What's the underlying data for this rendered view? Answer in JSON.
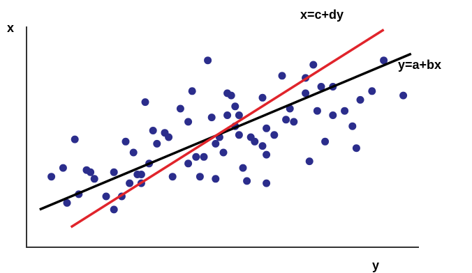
{
  "chart_data": {
    "type": "scatter",
    "title": "",
    "xlabel": "y",
    "ylabel": "x",
    "xlim": [
      0,
      100
    ],
    "ylim": [
      0,
      100
    ],
    "grid": false,
    "legend": "none",
    "points": [
      [
        6,
        29
      ],
      [
        9,
        33
      ],
      [
        10,
        17
      ],
      [
        12,
        46
      ],
      [
        13,
        21
      ],
      [
        15,
        32
      ],
      [
        16,
        31
      ],
      [
        17,
        28
      ],
      [
        20,
        20
      ],
      [
        22,
        31
      ],
      [
        22,
        14
      ],
      [
        24,
        20
      ],
      [
        25,
        45
      ],
      [
        26,
        26
      ],
      [
        27,
        40
      ],
      [
        28,
        30
      ],
      [
        29,
        30
      ],
      [
        29,
        26
      ],
      [
        30,
        63
      ],
      [
        31,
        35
      ],
      [
        32,
        50
      ],
      [
        33,
        44
      ],
      [
        35,
        49
      ],
      [
        36,
        47
      ],
      [
        37,
        29
      ],
      [
        39,
        60
      ],
      [
        41,
        54
      ],
      [
        41,
        35
      ],
      [
        42,
        68
      ],
      [
        43,
        38
      ],
      [
        44,
        29
      ],
      [
        45,
        38
      ],
      [
        46,
        82
      ],
      [
        47,
        56
      ],
      [
        48,
        44
      ],
      [
        48,
        28
      ],
      [
        49,
        47
      ],
      [
        50,
        40
      ],
      [
        51,
        67
      ],
      [
        51,
        57
      ],
      [
        52,
        66
      ],
      [
        53,
        61
      ],
      [
        54,
        48
      ],
      [
        54,
        57
      ],
      [
        53,
        52
      ],
      [
        55,
        33
      ],
      [
        56,
        27
      ],
      [
        57,
        47
      ],
      [
        58,
        45
      ],
      [
        60,
        43
      ],
      [
        60,
        65
      ],
      [
        61,
        51
      ],
      [
        61,
        39
      ],
      [
        61,
        26
      ],
      [
        63,
        48
      ],
      [
        65,
        75
      ],
      [
        66,
        55
      ],
      [
        67,
        60
      ],
      [
        68,
        54
      ],
      [
        71,
        74
      ],
      [
        71,
        67
      ],
      [
        72,
        36
      ],
      [
        73,
        80
      ],
      [
        74,
        59
      ],
      [
        75,
        70
      ],
      [
        76,
        45
      ],
      [
        78,
        70
      ],
      [
        78,
        57
      ],
      [
        81,
        59
      ],
      [
        83,
        52
      ],
      [
        84,
        42
      ],
      [
        85,
        64
      ],
      [
        88,
        68
      ],
      [
        91,
        82
      ],
      [
        96,
        66
      ]
    ],
    "series": [
      {
        "name": "y=a+bx",
        "line": [
          [
            3,
            14
          ],
          [
            98,
            85
          ]
        ],
        "color": "#000000"
      },
      {
        "name": "x=c+dy",
        "line": [
          [
            11,
            6
          ],
          [
            91,
            96
          ]
        ],
        "color": "#e0242b"
      }
    ],
    "colors": {
      "points": "#2b2d8c",
      "axis": "#333333"
    }
  }
}
